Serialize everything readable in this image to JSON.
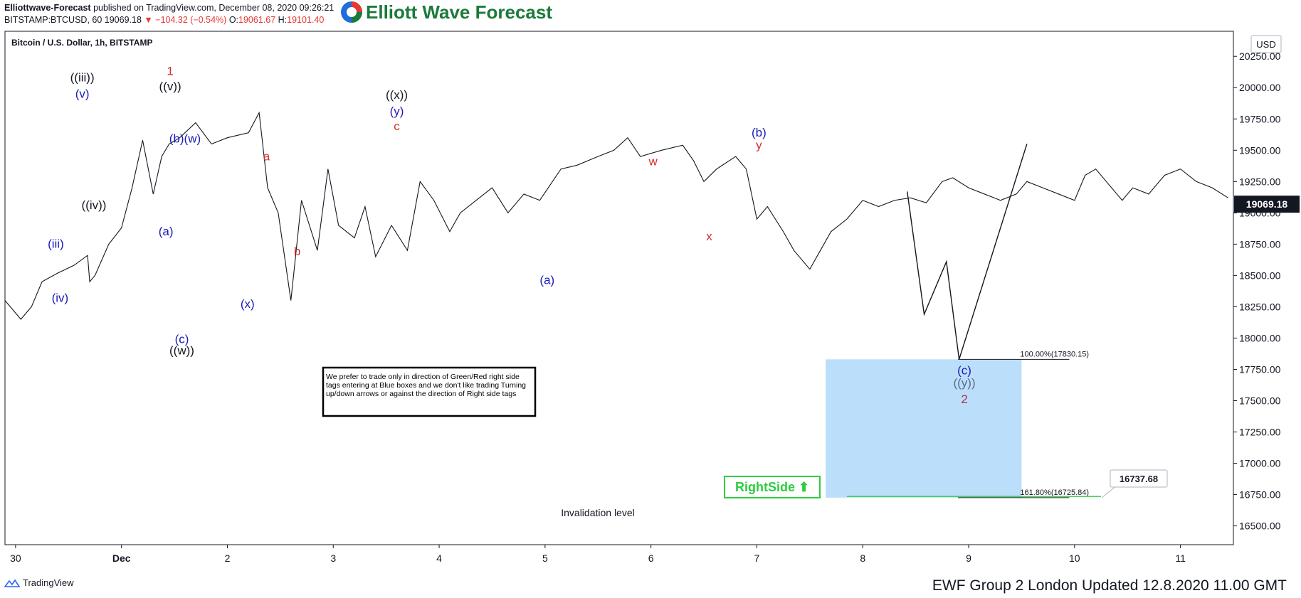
{
  "header": {
    "publisher": "Elliottwave-Forecast",
    "published_text": "published on TradingView.com, December 08, 2020 09:26:21",
    "symbol": "BITSTAMP:BTCUSD, 60",
    "last": "19069.18",
    "change": "−104.32 (−0.54%)",
    "open_label": "O:",
    "open": "19061.67",
    "high_label": "H:",
    "high": "19101.40"
  },
  "logo": {
    "text": "Elliott Wave Forecast",
    "colors": {
      "green": "#1b7a3a",
      "red": "#e53935",
      "blue": "#1e6fd9"
    }
  },
  "chart_title": "Bitcoin / U.S. Dollar, 1h, BITSTAMP",
  "currency": "USD",
  "current_price": "19069.18",
  "note": "We prefer to trade only in direction of Green/Red right side tags entering at Blue boxes and we don't like trading Turning up/down arrows or against the direction of Right side tags",
  "rightside_tag": "RightSide ⬆",
  "invalidation": "Invalidation level",
  "price_tag": "16737.68",
  "footer": {
    "tradingview": "TradingView",
    "ewf": "EWF Group 2 London Updated 12.8.2020 11.00 GMT"
  },
  "chart_data": {
    "type": "line",
    "x_ticks": [
      {
        "label": "30",
        "t": 0
      },
      {
        "label": "Dec",
        "t": 1
      },
      {
        "label": "2",
        "t": 2
      },
      {
        "label": "3",
        "t": 3
      },
      {
        "label": "4",
        "t": 4
      },
      {
        "label": "5",
        "t": 5
      },
      {
        "label": "6",
        "t": 6
      },
      {
        "label": "7",
        "t": 7
      },
      {
        "label": "8",
        "t": 8
      },
      {
        "label": "9",
        "t": 9
      },
      {
        "label": "10",
        "t": 10
      },
      {
        "label": "11",
        "t": 11
      }
    ],
    "y_ticks": [
      16500,
      16750,
      17000,
      17250,
      17500,
      17750,
      18000,
      18250,
      18500,
      18750,
      19000,
      19250,
      19500,
      19750,
      20000,
      20250
    ],
    "ylim": [
      16350,
      20450
    ],
    "xlim": [
      -0.1,
      11.5
    ],
    "price_path": [
      [
        -0.1,
        18300
      ],
      [
        0.05,
        18150
      ],
      [
        0.15,
        18250
      ],
      [
        0.25,
        18450
      ],
      [
        0.4,
        18520
      ],
      [
        0.55,
        18580
      ],
      [
        0.68,
        18660
      ],
      [
        0.7,
        18450
      ],
      [
        0.75,
        18500
      ],
      [
        0.88,
        18750
      ],
      [
        1.0,
        18880
      ],
      [
        1.1,
        19200
      ],
      [
        1.2,
        19580
      ],
      [
        1.3,
        19150
      ],
      [
        1.38,
        19450
      ],
      [
        1.45,
        19550
      ],
      [
        1.55,
        19600
      ],
      [
        1.7,
        19720
      ],
      [
        1.85,
        19550
      ],
      [
        2.0,
        19600
      ],
      [
        2.2,
        19640
      ],
      [
        2.3,
        19800
      ],
      [
        2.38,
        19200
      ],
      [
        2.48,
        19000
      ],
      [
        2.6,
        18300
      ],
      [
        2.7,
        19100
      ],
      [
        2.85,
        18700
      ],
      [
        2.95,
        19350
      ],
      [
        3.05,
        18900
      ],
      [
        3.2,
        18800
      ],
      [
        3.3,
        19050
      ],
      [
        3.4,
        18650
      ],
      [
        3.55,
        18900
      ],
      [
        3.7,
        18700
      ],
      [
        3.82,
        19250
      ],
      [
        3.95,
        19100
      ],
      [
        4.1,
        18850
      ],
      [
        4.2,
        19000
      ],
      [
        4.35,
        19100
      ],
      [
        4.5,
        19200
      ],
      [
        4.65,
        19000
      ],
      [
        4.8,
        19150
      ],
      [
        4.95,
        19100
      ],
      [
        5.15,
        19350
      ],
      [
        5.3,
        19380
      ],
      [
        5.5,
        19450
      ],
      [
        5.65,
        19500
      ],
      [
        5.78,
        19600
      ],
      [
        5.9,
        19450
      ],
      [
        6.1,
        19500
      ],
      [
        6.3,
        19540
      ],
      [
        6.4,
        19420
      ],
      [
        6.5,
        19250
      ],
      [
        6.62,
        19350
      ],
      [
        6.8,
        19450
      ],
      [
        6.9,
        19350
      ],
      [
        7.0,
        18950
      ],
      [
        7.1,
        19050
      ],
      [
        7.25,
        18850
      ],
      [
        7.35,
        18700
      ],
      [
        7.5,
        18550
      ],
      [
        7.6,
        18700
      ],
      [
        7.7,
        18850
      ],
      [
        7.85,
        18950
      ],
      [
        8.0,
        19100
      ],
      [
        8.15,
        19050
      ],
      [
        8.3,
        19100
      ],
      [
        8.45,
        19120
      ],
      [
        8.6,
        19080
      ],
      [
        8.75,
        19250
      ],
      [
        8.85,
        19280
      ],
      [
        9.0,
        19200
      ],
      [
        9.15,
        19150
      ],
      [
        9.3,
        19100
      ],
      [
        9.45,
        19150
      ],
      [
        9.55,
        19250
      ],
      [
        9.7,
        19200
      ],
      [
        9.85,
        19150
      ],
      [
        10.0,
        19100
      ],
      [
        10.1,
        19300
      ],
      [
        10.2,
        19350
      ],
      [
        10.3,
        19250
      ],
      [
        10.45,
        19100
      ],
      [
        10.55,
        19200
      ],
      [
        10.7,
        19150
      ],
      [
        10.85,
        19300
      ],
      [
        11.0,
        19350
      ],
      [
        11.15,
        19250
      ],
      [
        11.3,
        19200
      ],
      [
        11.45,
        19120
      ]
    ],
    "projection_path": [
      [
        8.42,
        19170
      ],
      [
        8.58,
        18190
      ],
      [
        8.79,
        18610
      ],
      [
        8.91,
        17830
      ],
      [
        9.55,
        19550
      ]
    ],
    "box": {
      "x0": 7.65,
      "x1": 9.5,
      "y0": 16725.84,
      "y1": 17830.15,
      "color": "#bbdefb"
    },
    "fib_levels": [
      {
        "label": "100.00%(17830.15)",
        "value": 17830.15
      },
      {
        "label": "161.80%(16725.84)",
        "value": 16725.84
      }
    ],
    "wave_labels": [
      {
        "text": "((iii))",
        "t": 0.63,
        "y": 20050,
        "color": "#131722"
      },
      {
        "text": "(v)",
        "t": 0.63,
        "y": 19920,
        "color": "#1a1ab8"
      },
      {
        "text": "(iii)",
        "t": 0.38,
        "y": 18720,
        "color": "#1a1ab8"
      },
      {
        "text": "(iv)",
        "t": 0.42,
        "y": 18290,
        "color": "#1a1ab8"
      },
      {
        "text": "((iv))",
        "t": 0.74,
        "y": 19030,
        "color": "#131722"
      },
      {
        "text": "1",
        "t": 1.46,
        "y": 20100,
        "color": "#d32f2f"
      },
      {
        "text": "((v))",
        "t": 1.46,
        "y": 19980,
        "color": "#131722"
      },
      {
        "text": "(b)(w)",
        "t": 1.6,
        "y": 19560,
        "color": "#1a1ab8"
      },
      {
        "text": "(a)",
        "t": 1.42,
        "y": 18820,
        "color": "#1a1ab8"
      },
      {
        "text": "(c)",
        "t": 1.57,
        "y": 17960,
        "color": "#1a1ab8"
      },
      {
        "text": "((w))",
        "t": 1.57,
        "y": 17870,
        "color": "#131722"
      },
      {
        "text": "(x)",
        "t": 2.19,
        "y": 18240,
        "color": "#1a1ab8"
      },
      {
        "text": "a",
        "t": 2.37,
        "y": 19420,
        "color": "#d32f2f"
      },
      {
        "text": "b",
        "t": 2.66,
        "y": 18660,
        "color": "#d32f2f"
      },
      {
        "text": "((x))",
        "t": 3.6,
        "y": 19910,
        "color": "#131722"
      },
      {
        "text": "(y)",
        "t": 3.6,
        "y": 19780,
        "color": "#1a1ab8"
      },
      {
        "text": "c",
        "t": 3.6,
        "y": 19660,
        "color": "#d32f2f"
      },
      {
        "text": "(a)",
        "t": 5.02,
        "y": 18430,
        "color": "#1a1ab8"
      },
      {
        "text": "w",
        "t": 6.02,
        "y": 19380,
        "color": "#d32f2f"
      },
      {
        "text": "x",
        "t": 6.55,
        "y": 18780,
        "color": "#d32f2f"
      },
      {
        "text": "(b)",
        "t": 7.02,
        "y": 19610,
        "color": "#1a1ab8"
      },
      {
        "text": "y",
        "t": 7.02,
        "y": 19510,
        "color": "#d32f2f"
      },
      {
        "text": "(c)",
        "t": 8.96,
        "y": 17710,
        "color": "#1a1ab8"
      },
      {
        "text": "((y))",
        "t": 8.96,
        "y": 17610,
        "color": "#5b6b8c"
      },
      {
        "text": "2",
        "t": 8.96,
        "y": 17480,
        "color": "#b03050"
      }
    ]
  }
}
